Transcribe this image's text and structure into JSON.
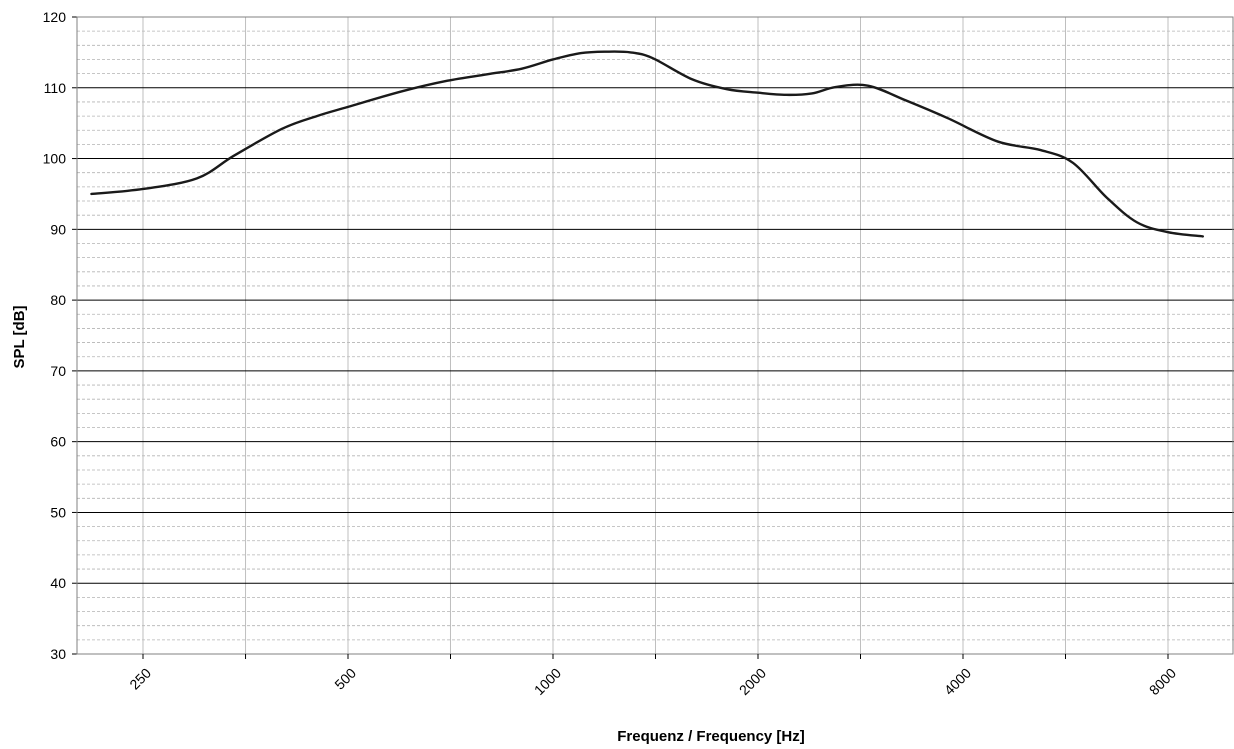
{
  "chart_data": {
    "type": "line",
    "xlabel": "Frequenz / Frequency [Hz]",
    "ylabel": "SPL [dB]",
    "x_scale": "log2",
    "xlim": [
      200,
      10000
    ],
    "ylim": [
      30,
      120
    ],
    "y_ticks": [
      "30",
      "40",
      "50",
      "60",
      "70",
      "80",
      "90",
      "100",
      "110",
      "120"
    ],
    "x_tick_labels": [
      {
        "value": 250,
        "label": "250"
      },
      {
        "value": 500,
        "label": "500"
      },
      {
        "value": 1000,
        "label": "1000"
      },
      {
        "value": 2000,
        "label": "2000"
      },
      {
        "value": 4000,
        "label": "4000"
      },
      {
        "value": 8000,
        "label": "8000"
      }
    ],
    "x_gridlines": [
      250,
      353.6,
      500,
      707.1,
      1000,
      1414.2,
      2000,
      2828.4,
      4000,
      5656.9,
      8000
    ],
    "grid": {
      "major_y_step": 10,
      "minor_y_step": 2,
      "x_grid": true
    },
    "series": [
      {
        "color": "#1a1a1a",
        "x": [
          210,
          250,
          300,
          340,
          400,
          450,
          500,
          600,
          700,
          800,
          900,
          1000,
          1100,
          1200,
          1300,
          1400,
          1600,
          1800,
          2000,
          2200,
          2400,
          2600,
          2900,
          3300,
          3800,
          4500,
          5200,
          5800,
          6500,
          7200,
          8000,
          9000
        ],
        "y": [
          95,
          95.7,
          97.2,
          100.4,
          104.2,
          106,
          107.3,
          109.5,
          111,
          111.9,
          112.7,
          114,
          114.9,
          115.1,
          115,
          114.2,
          111.2,
          109.8,
          109.3,
          109,
          109.2,
          110.1,
          110.3,
          108.2,
          105.7,
          102.4,
          101.2,
          99.4,
          94.5,
          91,
          89.6,
          89
        ]
      }
    ]
  }
}
